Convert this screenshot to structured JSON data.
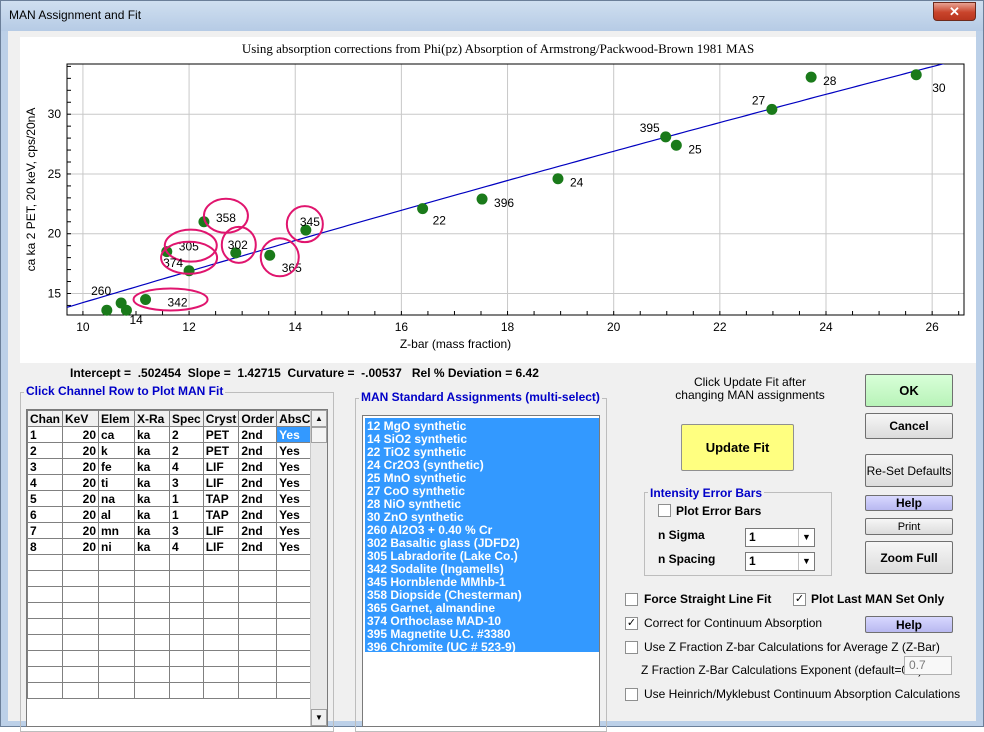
{
  "window": {
    "title": "MAN Assignment and Fit",
    "close_glyph": "✕"
  },
  "plot": {
    "title": "Using absorption corrections from Phi(pz) Absorption of Armstrong/Packwood-Brown 1981 MAS"
  },
  "chart_data": {
    "type": "scatter",
    "xlabel": "Z-bar (mass fraction)",
    "ylabel": "ca ka  2 PET, 20 keV, cps/20nA",
    "xlim": [
      9.7,
      26.6
    ],
    "ylim": [
      13.2,
      34.2
    ],
    "xticks": [
      10,
      12,
      14,
      16,
      18,
      20,
      22,
      24,
      26
    ],
    "yticks": [
      15,
      20,
      25,
      30
    ],
    "grid": true,
    "points": [
      {
        "x": 10.45,
        "y": 13.6,
        "label": ""
      },
      {
        "x": 10.72,
        "y": 14.2,
        "label": "260"
      },
      {
        "x": 10.82,
        "y": 13.6,
        "label": "14"
      },
      {
        "x": 11.18,
        "y": 14.5,
        "label": "342"
      },
      {
        "x": 11.58,
        "y": 18.5,
        "label": "305"
      },
      {
        "x": 12.0,
        "y": 16.9,
        "label": "374"
      },
      {
        "x": 12.28,
        "y": 21.0,
        "label": "358"
      },
      {
        "x": 12.88,
        "y": 18.4,
        "label": "302"
      },
      {
        "x": 13.52,
        "y": 18.2,
        "label": "365"
      },
      {
        "x": 14.2,
        "y": 20.3,
        "label": "345"
      },
      {
        "x": 16.4,
        "y": 22.1,
        "label": "22"
      },
      {
        "x": 17.52,
        "y": 22.9,
        "label": "396"
      },
      {
        "x": 18.95,
        "y": 24.6,
        "label": "24"
      },
      {
        "x": 20.98,
        "y": 28.1,
        "label": "395"
      },
      {
        "x": 21.18,
        "y": 27.4,
        "label": "25"
      },
      {
        "x": 22.98,
        "y": 30.4,
        "label": "27"
      },
      {
        "x": 23.72,
        "y": 33.1,
        "label": "28"
      },
      {
        "x": 25.7,
        "y": 33.3,
        "label": "30"
      }
    ],
    "fit": {
      "intercept": 0.502454,
      "slope": 1.42715,
      "curvature": -0.00537
    },
    "circled_labels": [
      "358",
      "305",
      "374",
      "342",
      "302",
      "345",
      "365"
    ],
    "colors": {
      "point": "#1a7a1a",
      "fit_line": "#0000c0",
      "circle": "#e0156e"
    }
  },
  "stats": {
    "text": "Intercept =  .502454  Slope =  1.42715  Curvature =  -.00537   Rel % Deviation = 6.42"
  },
  "channels": {
    "title": "Click Channel Row to Plot MAN Fit",
    "headers": [
      "Chan",
      "KeV",
      "Elem",
      "X-Ra",
      "Spec",
      "Cryst",
      "Order",
      "AbsC"
    ],
    "rows": [
      [
        "1",
        "20",
        "ca",
        "ka",
        "2",
        "PET",
        "2nd",
        "Yes"
      ],
      [
        "2",
        "20",
        "k",
        "ka",
        "2",
        "PET",
        "2nd",
        "Yes"
      ],
      [
        "3",
        "20",
        "fe",
        "ka",
        "4",
        "LIF",
        "2nd",
        "Yes"
      ],
      [
        "4",
        "20",
        "ti",
        "ka",
        "3",
        "LIF",
        "2nd",
        "Yes"
      ],
      [
        "5",
        "20",
        "na",
        "ka",
        "1",
        "TAP",
        "2nd",
        "Yes"
      ],
      [
        "6",
        "20",
        "al",
        "ka",
        "1",
        "TAP",
        "2nd",
        "Yes"
      ],
      [
        "7",
        "20",
        "mn",
        "ka",
        "3",
        "LIF",
        "2nd",
        "Yes"
      ],
      [
        "8",
        "20",
        "ni",
        "ka",
        "4",
        "LIF",
        "2nd",
        "Yes"
      ]
    ],
    "scroll_up": "▲",
    "scroll_down": "▼"
  },
  "standards": {
    "title": "MAN Standard Assignments (multi-select)",
    "items": [
      " 12 MgO synthetic",
      " 14 SiO2 synthetic",
      " 22 TiO2 synthetic",
      " 24 Cr2O3 (synthetic)",
      " 25 MnO synthetic",
      " 27 CoO synthetic",
      " 28 NiO synthetic",
      " 30 ZnO synthetic",
      "260 Al2O3 + 0.40 % Cr",
      "302 Basaltic glass (JDFD2)",
      "305 Labradorite (Lake Co.)",
      "342 Sodalite (Ingamells)",
      "345 Hornblende MMhb-1",
      "358 Diopside (Chesterman)",
      "365 Garnet, almandine",
      "374 Orthoclase MAD-10",
      "395 Magnetite U.C. #3380",
      "396 Chromite (UC # 523-9)"
    ]
  },
  "controls": {
    "update_note": "Click Update Fit after changing MAN assignments",
    "update_button": "Update Fit",
    "ok_button": "OK",
    "cancel_button": "Cancel",
    "reset_button": "Re-Set Defaults",
    "help_button": "Help",
    "print_button": "Print",
    "zoom_button": "Zoom Full",
    "error_bars_title": "Intensity Error Bars",
    "plot_error_bars": "Plot Error Bars",
    "n_sigma_label": "n Sigma",
    "n_sigma_value": "1",
    "n_spacing_label": "n Spacing",
    "n_spacing_value": "1",
    "combo_arrow": "▼",
    "force_straight": "Force Straight Line Fit",
    "plot_last": "Plot Last MAN Set Only",
    "correct_continuum": "Correct for Continuum Absorption",
    "help2_button": "Help",
    "use_z_fraction": "Use Z Fraction Z-bar Calculations for Average Z   (Z-Bar)",
    "exponent_label": "Z Fraction Z-Bar Calculations Exponent (default=0.7)",
    "exponent_value": "0.7",
    "use_heinrich": "Use Heinrich/Myklebust Continuum Absorption Calculations",
    "check_mark": "✓"
  }
}
